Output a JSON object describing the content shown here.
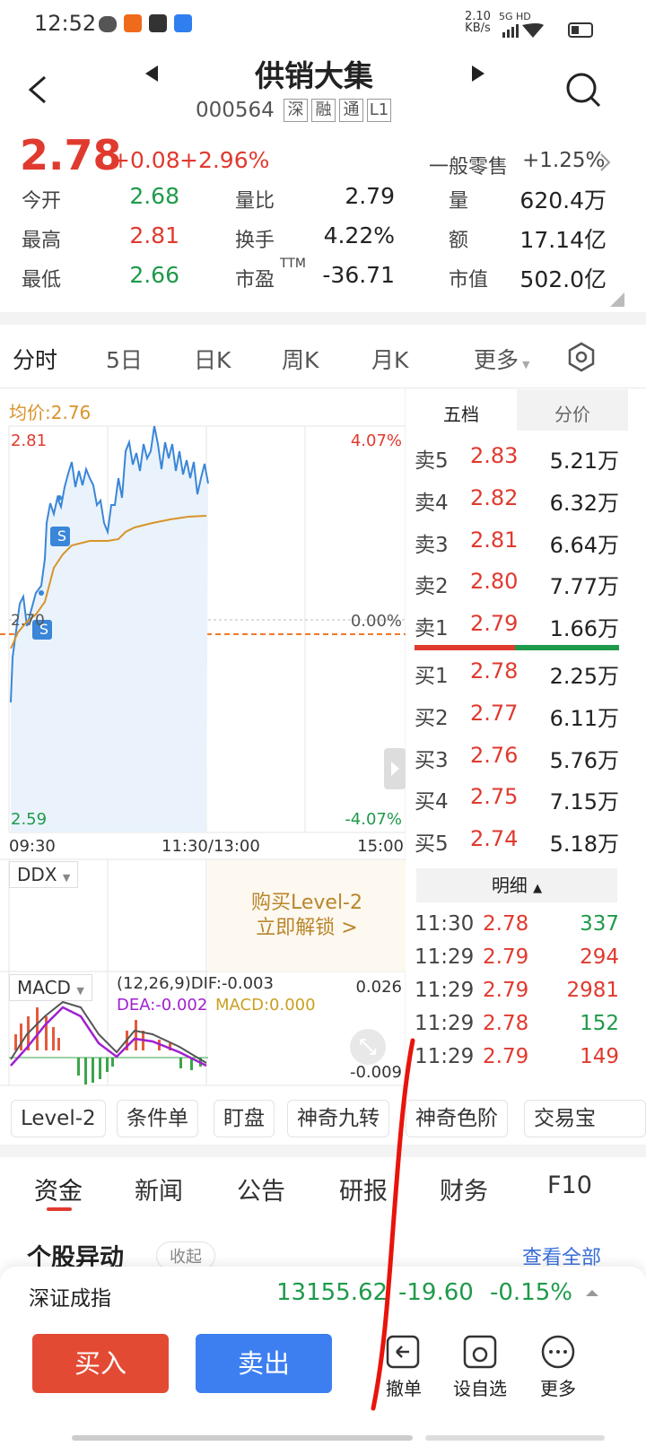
{
  "status": {
    "time": "12:52",
    "speed": "2.10",
    "speed_unit": "KB/s",
    "network": "5G HD"
  },
  "header": {
    "title": "供销大集",
    "code": "000564",
    "tags": [
      "深",
      "融",
      "通",
      "L1"
    ]
  },
  "quote": {
    "price": "2.78",
    "change": "+0.08",
    "pct": "+2.96%",
    "sector": "一般零售",
    "sector_pct": "+1.25%",
    "stats": [
      [
        [
          "今开",
          "2.68",
          "green"
        ],
        [
          "量比",
          "2.79",
          "dark"
        ],
        [
          "量",
          "620.4万",
          "dark"
        ]
      ],
      [
        [
          "最高",
          "2.81",
          "red"
        ],
        [
          "换手",
          "4.22%",
          "dark"
        ],
        [
          "额",
          "17.14亿",
          "dark"
        ]
      ],
      [
        [
          "最低",
          "2.66",
          "green"
        ],
        [
          "市盈",
          "-36.71",
          "dark"
        ],
        [
          "市值",
          "502.0亿",
          "dark"
        ]
      ]
    ],
    "ttm": "TTM"
  },
  "tabs": [
    "分时",
    "5日",
    "日K",
    "周K",
    "月K",
    "更多"
  ],
  "chart": {
    "avg": "均价:2.76",
    "high": "2.81",
    "high_pct": "4.07%",
    "mid": "2.70",
    "mid_pct": "0.00%",
    "low": "2.59",
    "low_pct": "-4.07%",
    "times": [
      "09:30",
      "11:30/13:00",
      "15:00"
    ],
    "marker": "S"
  },
  "ddx": {
    "label": "DDX",
    "lock": [
      "购买Level-2",
      "立即解锁 >"
    ]
  },
  "macd": {
    "label": "MACD",
    "dif": "(12,26,9)DIF:-0.003",
    "dea": "DEA:-0.002",
    "macd": "MACD:0.000",
    "top": "0.026",
    "bottom": "-0.009"
  },
  "book": {
    "tabs": [
      "五档",
      "分价"
    ],
    "asks": [
      [
        "卖5",
        "2.83",
        "5.21万"
      ],
      [
        "卖4",
        "2.82",
        "6.32万"
      ],
      [
        "卖3",
        "2.81",
        "6.64万"
      ],
      [
        "卖2",
        "2.80",
        "7.77万"
      ],
      [
        "卖1",
        "2.79",
        "1.66万"
      ]
    ],
    "bids": [
      [
        "买1",
        "2.78",
        "2.25万"
      ],
      [
        "买2",
        "2.77",
        "6.11万"
      ],
      [
        "买3",
        "2.76",
        "5.76万"
      ],
      [
        "买4",
        "2.75",
        "7.15万"
      ],
      [
        "买5",
        "2.74",
        "5.18万"
      ]
    ],
    "detail": "明细",
    "trades": [
      [
        "11:30",
        "2.78",
        "337",
        "green"
      ],
      [
        "11:29",
        "2.79",
        "294",
        "red"
      ],
      [
        "11:29",
        "2.79",
        "2981",
        "red"
      ],
      [
        "11:29",
        "2.78",
        "152",
        "green"
      ],
      [
        "11:29",
        "2.79",
        "149",
        "red"
      ]
    ]
  },
  "tools": [
    "Level-2",
    "条件单",
    "盯盘",
    "神奇九转",
    "神奇色阶",
    "交易宝"
  ],
  "news_tabs": [
    "资金",
    "新闻",
    "公告",
    "研报",
    "财务",
    "F10"
  ],
  "section": {
    "title": "个股异动",
    "collapse": "收起",
    "more": "查看全部"
  },
  "index": {
    "name": "深证成指",
    "value": "13155.62",
    "change": "-19.60",
    "pct": "-0.15%"
  },
  "actions": {
    "buy": "买入",
    "sell": "卖出",
    "cancel": "撤单",
    "watch": "设自选",
    "more": "更多"
  }
}
